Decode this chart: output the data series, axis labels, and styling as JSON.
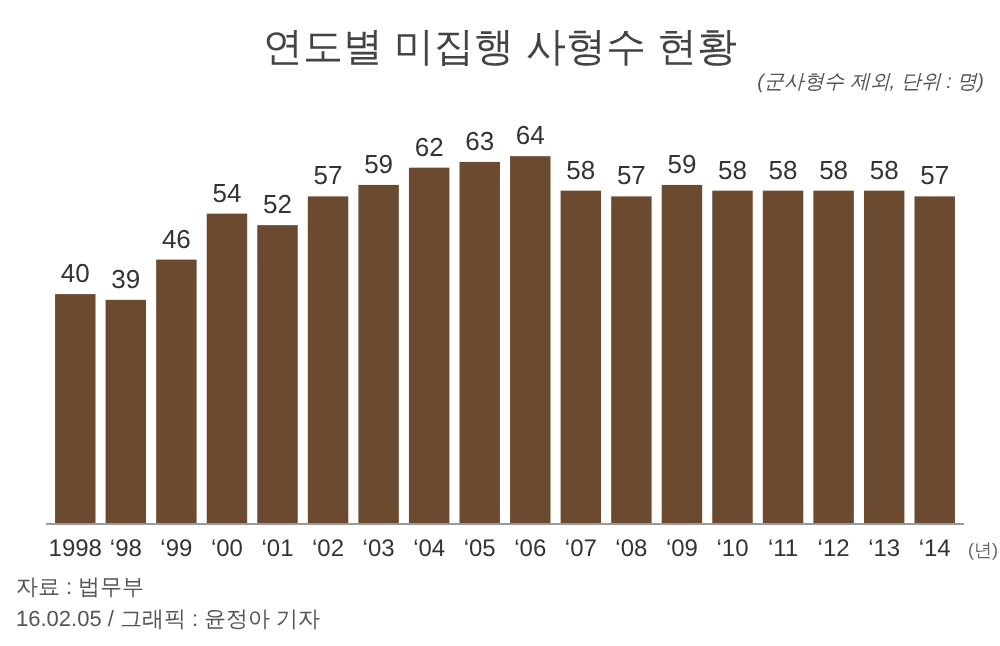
{
  "chart_data": {
    "type": "bar",
    "title": "연도별 미집행 사형수 현황",
    "subtitle": "(군사형수 제외, 단위 : 명)",
    "xlabel": "(년)",
    "categories": [
      "1998",
      "‘98",
      "‘99",
      "‘00",
      "‘01",
      "‘02",
      "‘03",
      "‘04",
      "‘05",
      "‘06",
      "‘07",
      "‘08",
      "‘09",
      "‘10",
      "‘11",
      "‘12",
      "‘13",
      "‘14"
    ],
    "values": [
      40,
      39,
      46,
      54,
      52,
      57,
      59,
      62,
      63,
      64,
      58,
      57,
      59,
      58,
      58,
      58,
      58,
      57
    ],
    "color": "#6b4a2f",
    "tick_labels": "x",
    "data_labels": true,
    "annotations": [
      "자료 : 법무부",
      "16.02.05 / 그래픽 : 윤정아 기자"
    ]
  }
}
